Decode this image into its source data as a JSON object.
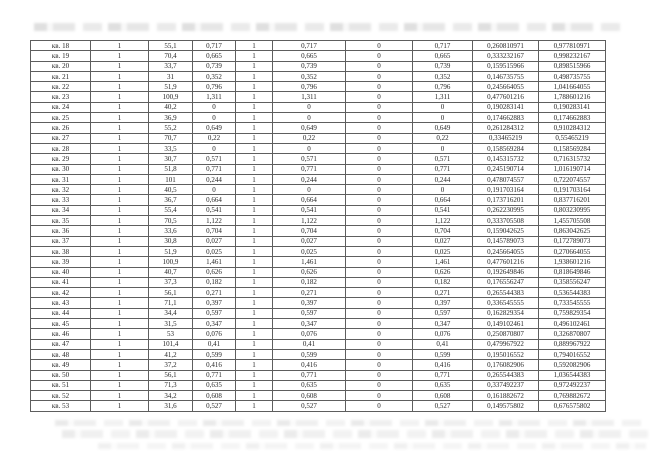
{
  "page": {
    "background": "#ffffff"
  },
  "table": {
    "outer_border_color": "#333333",
    "inner_border_color": "#5e5e5e",
    "text_color": "#262626",
    "row_label_prefix": "кв.",
    "num_columns": 10,
    "rows": [
      [
        "кв. 18",
        "1",
        "55,1",
        "0,717",
        "1",
        "0,717",
        "0",
        "0,717",
        "0,260810971",
        "0,977810971"
      ],
      [
        "кв. 19",
        "1",
        "70,4",
        "0,665",
        "1",
        "0,665",
        "0",
        "0,665",
        "0,333232167",
        "0,998232167"
      ],
      [
        "кв. 20",
        "1",
        "33,7",
        "0,739",
        "1",
        "0,739",
        "0",
        "0,739",
        "0,159515966",
        "0,898515966"
      ],
      [
        "кв. 21",
        "1",
        "31",
        "0,352",
        "1",
        "0,352",
        "0",
        "0,352",
        "0,146735755",
        "0,498735755"
      ],
      [
        "кв. 22",
        "1",
        "51,9",
        "0,796",
        "1",
        "0,796",
        "0",
        "0,796",
        "0,245664055",
        "1,041664055"
      ],
      [
        "кв. 23",
        "1",
        "100,9",
        "1,311",
        "1",
        "1,311",
        "0",
        "1,311",
        "0,477601216",
        "1,788601216"
      ],
      [
        "кв. 24",
        "1",
        "40,2",
        "0",
        "1",
        "0",
        "0",
        "0",
        "0,190283141",
        "0,190283141"
      ],
      [
        "кв. 25",
        "1",
        "36,9",
        "0",
        "1",
        "0",
        "0",
        "0",
        "0,174662883",
        "0,174662883"
      ],
      [
        "кв. 26",
        "1",
        "55,2",
        "0,649",
        "1",
        "0,649",
        "0",
        "0,649",
        "0,261284312",
        "0,910284312"
      ],
      [
        "кв. 27",
        "1",
        "70,7",
        "0,22",
        "1",
        "0,22",
        "0",
        "0,22",
        "0,33465219",
        "0,55465219"
      ],
      [
        "кв. 28",
        "1",
        "33,5",
        "0",
        "1",
        "0",
        "0",
        "0",
        "0,158569284",
        "0,158569284"
      ],
      [
        "кв. 29",
        "1",
        "30,7",
        "0,571",
        "1",
        "0,571",
        "0",
        "0,571",
        "0,145315732",
        "0,716315732"
      ],
      [
        "кв. 30",
        "1",
        "51,8",
        "0,771",
        "1",
        "0,771",
        "0",
        "0,771",
        "0,245190714",
        "1,016190714"
      ],
      [
        "кв. 31",
        "1",
        "101",
        "0,244",
        "1",
        "0,244",
        "0",
        "0,244",
        "0,478074557",
        "0,722074557"
      ],
      [
        "кв. 32",
        "1",
        "40,5",
        "0",
        "1",
        "0",
        "0",
        "0",
        "0,191703164",
        "0,191703164"
      ],
      [
        "кв. 33",
        "1",
        "36,7",
        "0,664",
        "1",
        "0,664",
        "0",
        "0,664",
        "0,173716201",
        "0,837716201"
      ],
      [
        "кв. 34",
        "1",
        "55,4",
        "0,541",
        "1",
        "0,541",
        "0",
        "0,541",
        "0,262230995",
        "0,803230995"
      ],
      [
        "кв. 35",
        "1",
        "70,5",
        "1,122",
        "1",
        "1,122",
        "0",
        "1,122",
        "0,333705508",
        "1,455705508"
      ],
      [
        "кв. 36",
        "1",
        "33,6",
        "0,704",
        "1",
        "0,704",
        "0",
        "0,704",
        "0,159042625",
        "0,863042625"
      ],
      [
        "кв. 37",
        "1",
        "30,8",
        "0,027",
        "1",
        "0,027",
        "0",
        "0,027",
        "0,145789073",
        "0,172789073"
      ],
      [
        "кв. 38",
        "1",
        "51,9",
        "0,025",
        "1",
        "0,025",
        "0",
        "0,025",
        "0,245664055",
        "0,270664055"
      ],
      [
        "кв. 39",
        "1",
        "100,9",
        "1,461",
        "1",
        "1,461",
        "0",
        "1,461",
        "0,477601216",
        "1,938601216"
      ],
      [
        "кв. 40",
        "1",
        "40,7",
        "0,626",
        "1",
        "0,626",
        "0",
        "0,626",
        "0,192649846",
        "0,818649846"
      ],
      [
        "кв. 41",
        "1",
        "37,3",
        "0,182",
        "1",
        "0,182",
        "0",
        "0,182",
        "0,176556247",
        "0,358556247"
      ],
      [
        "кв. 42",
        "1",
        "56,1",
        "0,271",
        "1",
        "0,271",
        "0",
        "0,271",
        "0,265544383",
        "0,536544383"
      ],
      [
        "кв. 43",
        "1",
        "71,1",
        "0,397",
        "1",
        "0,397",
        "0",
        "0,397",
        "0,336545555",
        "0,733545555"
      ],
      [
        "кв. 44",
        "1",
        "34,4",
        "0,597",
        "1",
        "0,597",
        "0",
        "0,597",
        "0,162829354",
        "0,759829354"
      ],
      [
        "кв. 45",
        "1",
        "31,5",
        "0,347",
        "1",
        "0,347",
        "0",
        "0,347",
        "0,149102461",
        "0,496102461"
      ],
      [
        "кв. 46",
        "1",
        "53",
        "0,076",
        "1",
        "0,076",
        "0",
        "0,076",
        "0,250870807",
        "0,326870807"
      ],
      [
        "кв. 47",
        "1",
        "101,4",
        "0,41",
        "1",
        "0,41",
        "0",
        "0,41",
        "0,479967922",
        "0,889967922"
      ],
      [
        "кв. 48",
        "1",
        "41,2",
        "0,599",
        "1",
        "0,599",
        "0",
        "0,599",
        "0,195016552",
        "0,794016552"
      ],
      [
        "кв. 49",
        "1",
        "37,2",
        "0,416",
        "1",
        "0,416",
        "0",
        "0,416",
        "0,176082906",
        "0,592082906"
      ],
      [
        "кв. 50",
        "1",
        "56,1",
        "0,771",
        "1",
        "0,771",
        "0",
        "0,771",
        "0,265544383",
        "1,036544383"
      ],
      [
        "кв. 51",
        "1",
        "71,3",
        "0,635",
        "1",
        "0,635",
        "0",
        "0,635",
        "0,337492237",
        "0,972492237"
      ],
      [
        "кв. 52",
        "1",
        "34,2",
        "0,608",
        "1",
        "0,608",
        "0",
        "0,608",
        "0,161882672",
        "0,769882672"
      ],
      [
        "кв. 53",
        "1",
        "31,6",
        "0,527",
        "1",
        "0,527",
        "0",
        "0,527",
        "0,149575802",
        "0,676575802"
      ]
    ]
  }
}
